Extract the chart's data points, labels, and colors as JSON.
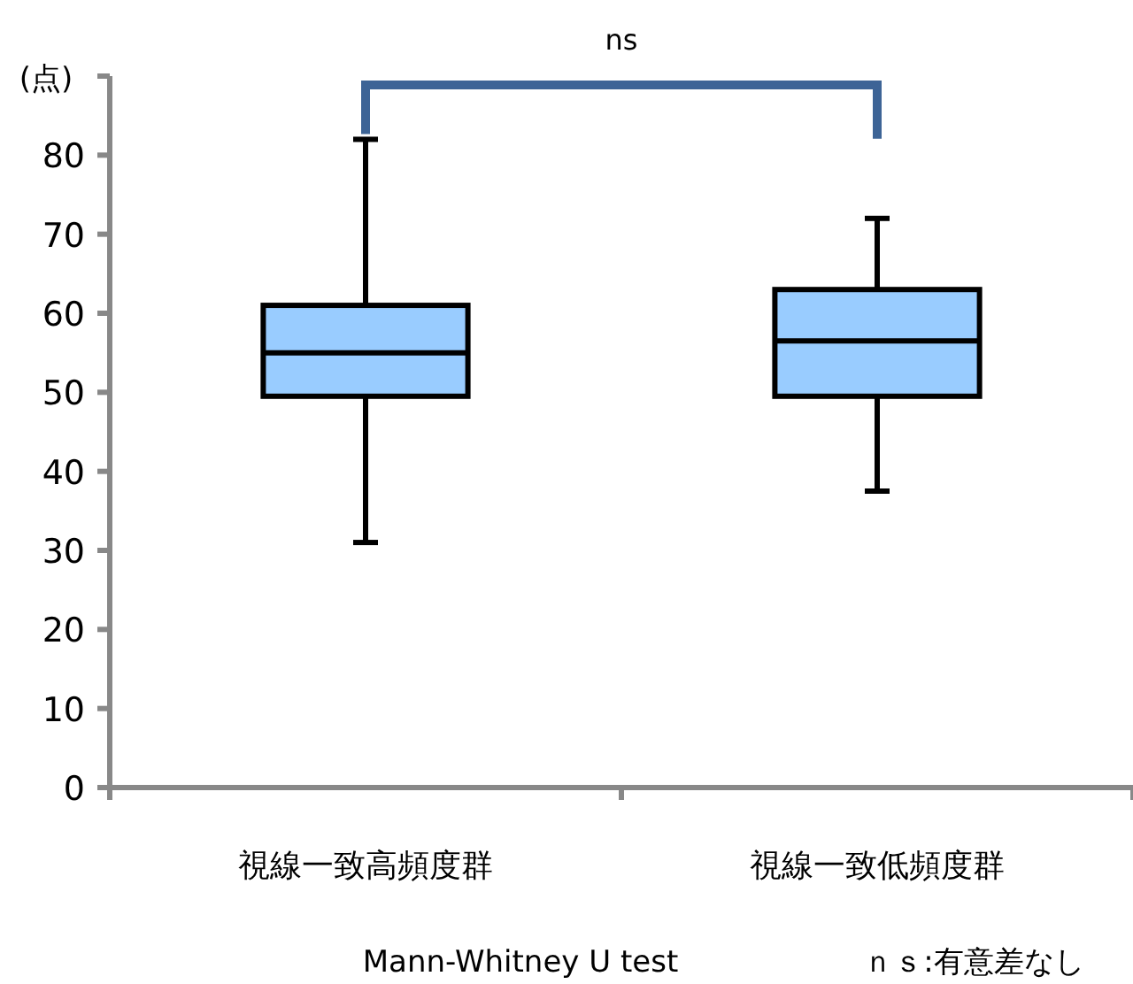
{
  "chart_data": {
    "type": "box",
    "ylabel": "(点)",
    "categories": [
      "視線一致高頻度群",
      "視線一致低頻度群"
    ],
    "boxes": [
      {
        "low": 31,
        "q1": 49.5,
        "median": 55,
        "q3": 61,
        "high": 82
      },
      {
        "low": 37.5,
        "q1": 49.5,
        "median": 56.5,
        "q3": 63,
        "high": 72
      }
    ],
    "color": "#99ccff",
    "ylim": [
      0,
      90
    ],
    "yticks": [
      0,
      10,
      20,
      30,
      40,
      50,
      60,
      70,
      80,
      {
        "value": 90,
        "label": null
      }
    ],
    "annotations": [
      "ns",
      "Mann-Whitney U test",
      "ｎｓ:有意差なし"
    ]
  }
}
